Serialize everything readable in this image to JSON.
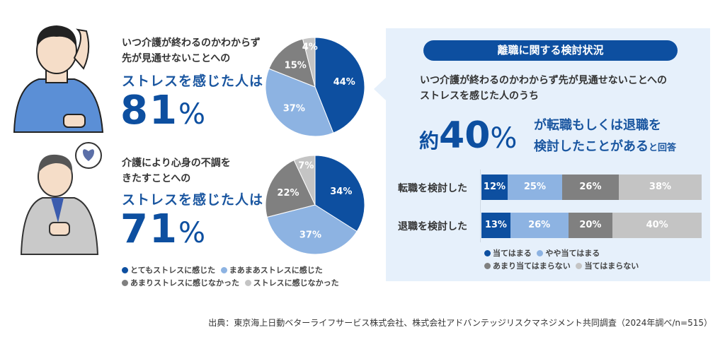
{
  "colors": {
    "very": "#0d4fa0",
    "somewhat": "#8db3e2",
    "notmuch": "#808080",
    "notatall": "#c4c4c4",
    "accent": "#1a56a0",
    "panel": "#e6f0fb"
  },
  "top": {
    "line1": "いつ介護が終わるのかわからず",
    "line2": "先が見通せないことへの",
    "highlight": "ストレスを感じた人は",
    "number": "81",
    "unit": "%"
  },
  "bottom": {
    "line1": "介護により心身の不調を",
    "line2": "きたすことへの",
    "highlight": "ストレスを感じた人は",
    "number": "71",
    "unit": "%"
  },
  "pie_legend": [
    "とてもストレスに感じた",
    "まあまあストレスに感じた",
    "あまりストレスに感じなかった",
    "ストレスに感じなかった"
  ],
  "panel": {
    "title": "離職に関する検討状況",
    "sub1": "いつ介護が終わるのかわからず先が見通せないことへの",
    "sub2": "ストレスを感じた人のうち",
    "prefix": "約",
    "number": "40",
    "unit": "%",
    "rest1": "が転職もしくは退職を",
    "rest2": "検討したことがある",
    "suffix": "と回答"
  },
  "bar_legend": [
    "当てはまる",
    "やや当てはまる",
    "あまり当てはまらない",
    "当てはまらない"
  ],
  "source": "出典：東京海上日動ベターライフサービス株式会社、株式会社アドバンテッジリスクマネジメント共同調査（2024年調べ/n=515）",
  "chart_data": [
    {
      "type": "pie",
      "categories": [
        "とてもストレスに感じた",
        "まあまあストレスに感じた",
        "あまりストレスに感じなかった",
        "ストレスに感じなかった"
      ],
      "values": [
        44,
        37,
        15,
        4
      ],
      "labels": [
        "44%",
        "37%",
        "15%",
        "4%"
      ]
    },
    {
      "type": "pie",
      "categories": [
        "とてもストレスに感じた",
        "まあまあストレスに感じた",
        "あまりストレスに感じなかった",
        "ストレスに感じなかった"
      ],
      "values": [
        34,
        37,
        22,
        7
      ],
      "labels": [
        "34%",
        "37%",
        "22%",
        "7%"
      ]
    },
    {
      "type": "bar",
      "orientation": "horizontal",
      "stacked": true,
      "categories": [
        "転職を検討した",
        "退職を検討した"
      ],
      "series": [
        {
          "name": "当てはまる",
          "values": [
            12,
            13
          ]
        },
        {
          "name": "やや当てはまる",
          "values": [
            25,
            26
          ]
        },
        {
          "name": "あまり当てはまらない",
          "values": [
            26,
            20
          ]
        },
        {
          "name": "当てはまらない",
          "values": [
            38,
            40
          ]
        }
      ]
    }
  ]
}
